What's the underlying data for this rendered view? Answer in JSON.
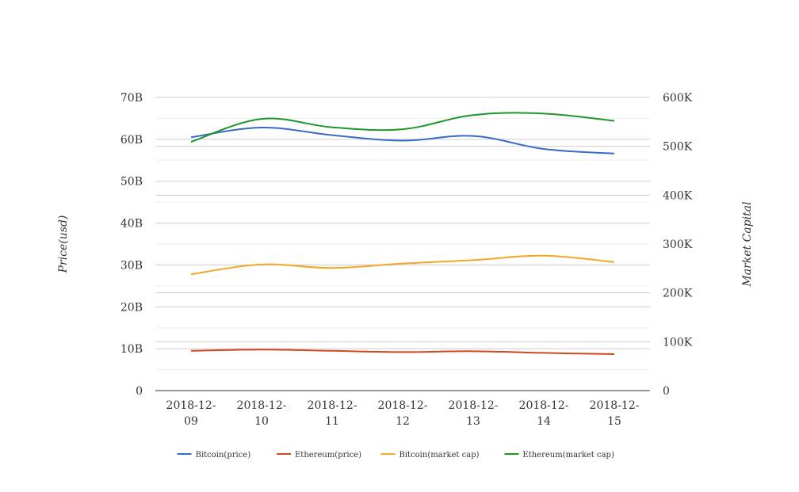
{
  "chart_data": {
    "type": "line",
    "title": "",
    "xlabel": "",
    "ylabel": "Price(usd)",
    "y2label": "Market Capital",
    "categories": [
      [
        "2018-12-",
        "09"
      ],
      [
        "2018-12-",
        "10"
      ],
      [
        "2018-12-",
        "11"
      ],
      [
        "2018-12-",
        "12"
      ],
      [
        "2018-12-",
        "13"
      ],
      [
        "2018-12-",
        "14"
      ],
      [
        "2018-12-",
        "15"
      ]
    ],
    "left_axis": {
      "ticks": [
        "0",
        "10B",
        "20B",
        "30B",
        "40B",
        "50B",
        "60B",
        "70B"
      ],
      "values": [
        0,
        10,
        20,
        30,
        40,
        50,
        60,
        70
      ],
      "ylim": [
        0,
        70
      ],
      "unit": "B"
    },
    "right_axis": {
      "ticks": [
        "0",
        "100K",
        "200K",
        "300K",
        "400K",
        "500K",
        "600K"
      ],
      "values": [
        0,
        100,
        200,
        300,
        400,
        500,
        600
      ],
      "ylim": [
        0,
        600
      ],
      "unit": "K"
    },
    "grid": true,
    "legend_position": "bottom-center",
    "series": [
      {
        "name": "Bitcoin(price)",
        "axis": "left",
        "color": "#3a6bc4",
        "values": [
          60.5,
          62.8,
          61.0,
          59.7,
          60.8,
          57.7,
          56.6
        ]
      },
      {
        "name": "Ethereum(price)",
        "axis": "left",
        "color": "#d0471f",
        "values": [
          9.5,
          9.8,
          9.5,
          9.2,
          9.4,
          9.0,
          8.7
        ]
      },
      {
        "name": "Bitcoin(market cap)",
        "axis": "right",
        "color": "#f5a623",
        "values": [
          238,
          258,
          251,
          260,
          267,
          276,
          263
        ]
      },
      {
        "name": "Ethereum(market cap)",
        "axis": "right",
        "color": "#1e9628",
        "values": [
          509,
          556,
          539,
          535,
          564,
          567,
          552
        ]
      }
    ]
  }
}
